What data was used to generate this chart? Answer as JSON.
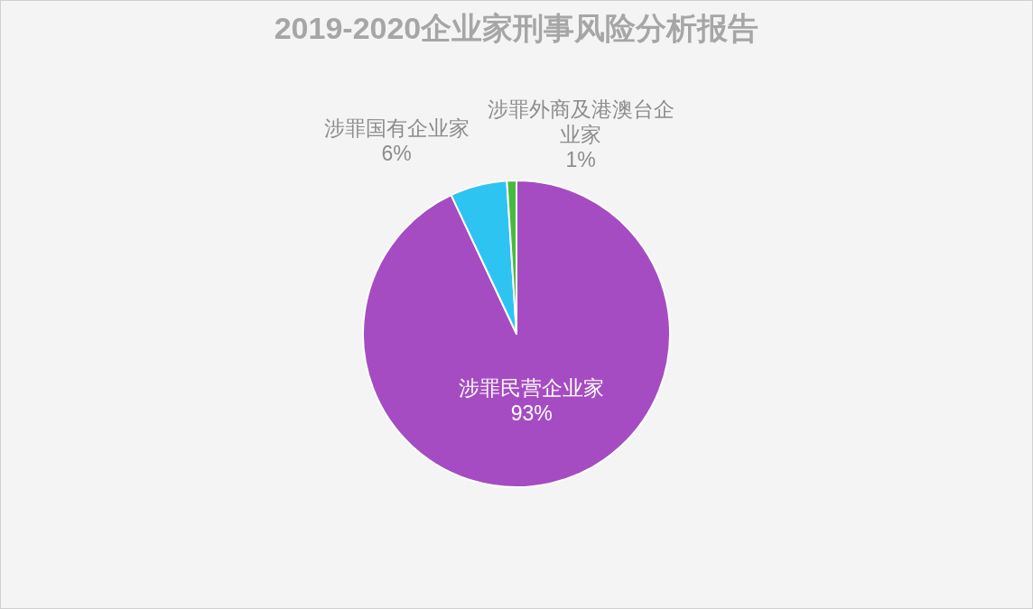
{
  "chart_data": {
    "type": "pie",
    "title": "2019-2020企业家刑事风险分析报告",
    "categories": [
      "涉罪民营企业家",
      "涉罪国有企业家",
      "涉罪外商及港澳台企业家"
    ],
    "values": [
      93,
      6,
      1
    ],
    "colors": [
      "#a64cc2",
      "#2ec4f2",
      "#45bb3c"
    ],
    "value_labels": [
      "93%",
      "6%",
      "1%"
    ]
  }
}
